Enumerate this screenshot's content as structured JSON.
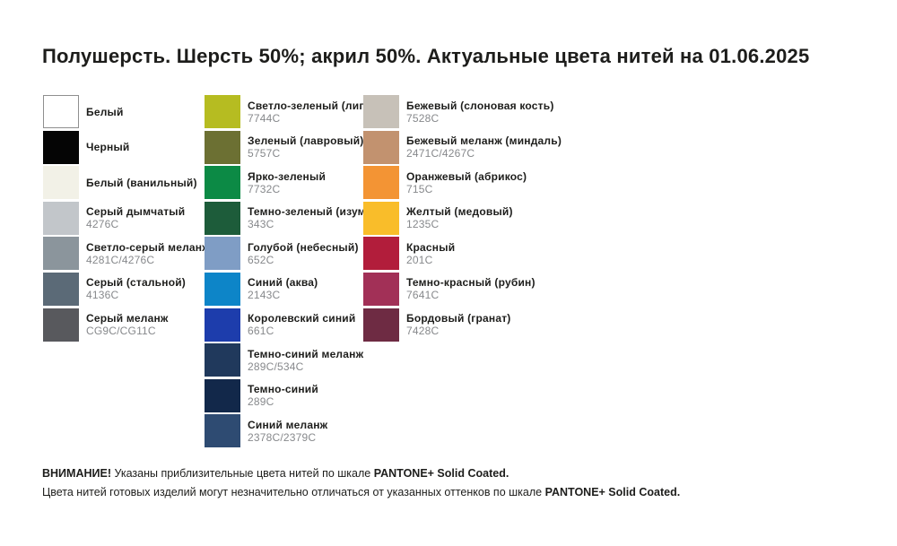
{
  "title": "Полушерсть. Шерсть 50%; акрил 50%. Актуальные цвета нитей на 01.06.2025",
  "palette_scale": "PANTONE+ Solid Coated",
  "columns": [
    {
      "items": [
        {
          "name": "Белый",
          "code": "",
          "color": "#ffffff",
          "border": true
        },
        {
          "name": "Черный",
          "code": "",
          "color": "#050505",
          "border": false
        },
        {
          "name": "Белый (ванильный)",
          "code": "",
          "color": "#f2f1e7",
          "border": false
        },
        {
          "name": "Серый дымчатый",
          "code": "4276C",
          "color": "#c2c6ca",
          "border": false
        },
        {
          "name": "Светло-серый меланж",
          "code": "4281C/4276C",
          "color": "#8b959c",
          "border": false
        },
        {
          "name": "Серый (стальной)",
          "code": "4136C",
          "color": "#5b6a77",
          "border": false
        },
        {
          "name": "Серый меланж",
          "code": "CG9C/CG11C",
          "color": "#58595d",
          "border": false
        }
      ]
    },
    {
      "items": [
        {
          "name": "Светло-зеленый (липа)",
          "code": "7744C",
          "color": "#b6bc21",
          "border": false
        },
        {
          "name": "Зеленый (лавровый)",
          "code": "5757C",
          "color": "#6c7033",
          "border": false
        },
        {
          "name": "Ярко-зеленый",
          "code": "7732C",
          "color": "#0c8a45",
          "border": false
        },
        {
          "name": "Темно-зеленый (изумруд)",
          "code": "343C",
          "color": "#1d5c3a",
          "border": false
        },
        {
          "name": "Голубой (небесный)",
          "code": "652C",
          "color": "#7f9dc5",
          "border": false
        },
        {
          "name": "Синий (аква)",
          "code": "2143C",
          "color": "#0d85c8",
          "border": false
        },
        {
          "name": "Королевский синий",
          "code": "661C",
          "color": "#1d3dac",
          "border": false
        },
        {
          "name": "Темно-синий меланж",
          "code": "289C/534C",
          "color": "#20395c",
          "border": false
        },
        {
          "name": "Темно-синий",
          "code": "289C",
          "color": "#12284a",
          "border": false
        },
        {
          "name": "Синий меланж",
          "code": "2378C/2379C",
          "color": "#2e4b72",
          "border": false
        }
      ]
    },
    {
      "items": [
        {
          "name": "Бежевый (слоновая кость)",
          "code": "7528C",
          "color": "#c7c1b8",
          "border": false
        },
        {
          "name": "Бежевый меланж (миндаль)",
          "code": "2471C/4267C",
          "color": "#c2926f",
          "border": false
        },
        {
          "name": "Оранжевый (абрикос)",
          "code": "715C",
          "color": "#f39434",
          "border": false
        },
        {
          "name": "Желтый (медовый)",
          "code": "1235C",
          "color": "#f9bd2a",
          "border": false
        },
        {
          "name": "Красный",
          "code": "201C",
          "color": "#b21d3b",
          "border": false
        },
        {
          "name": "Темно-красный (рубин)",
          "code": "7641C",
          "color": "#a23057",
          "border": false
        },
        {
          "name": "Бордовый (гранат)",
          "code": "7428C",
          "color": "#6e2b43",
          "border": false
        }
      ]
    }
  ],
  "footer": {
    "warning": "ВНИМАНИЕ!",
    "line1": " Указаны приблизительные цвета нитей по шкале ",
    "brand1": "PANTONE+ Solid Coated.",
    "line2": "Цвета нитей готовых изделий могут незначительно отличаться от указанных оттенков по шкале ",
    "brand2": "PANTONE+ Solid Coated."
  }
}
